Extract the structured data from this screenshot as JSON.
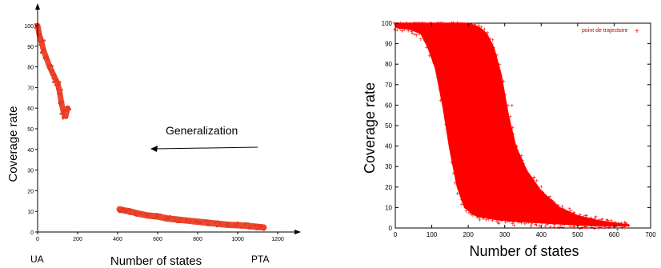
{
  "chart_data": [
    {
      "type": "scatter",
      "title": "",
      "xlabel": "Number of states",
      "ylabel": "Coverage rate",
      "xlim": [
        0,
        1200
      ],
      "ylim": [
        0,
        100
      ],
      "xticks": [
        0,
        200,
        400,
        600,
        800,
        1000,
        1200
      ],
      "yticks": [
        0,
        10,
        20,
        30,
        40,
        50,
        60,
        70,
        80,
        90,
        100
      ],
      "marker_color": "#e8341c",
      "grid": false,
      "annotations": {
        "arrow_label": "Generalization",
        "left_end_label": "UA",
        "right_end_label": "PTA"
      },
      "clusters": [
        {
          "name": "",
          "points": [
            [
              0,
              100
            ],
            [
              10,
              95
            ],
            [
              20,
              92
            ],
            [
              30,
              88
            ],
            [
              45,
              84
            ],
            [
              60,
              80
            ],
            [
              75,
              77
            ],
            [
              90,
              74
            ],
            [
              100,
              72
            ],
            [
              110,
              68
            ],
            [
              120,
              62
            ],
            [
              130,
              58
            ],
            [
              140,
              56
            ],
            [
              150,
              60
            ]
          ]
        },
        {
          "name": "",
          "points": [
            [
              410,
              11
            ],
            [
              430,
              10.5
            ],
            [
              460,
              10
            ],
            [
              500,
              9
            ],
            [
              550,
              8
            ],
            [
              600,
              7.5
            ],
            [
              650,
              6.5
            ],
            [
              700,
              6
            ],
            [
              750,
              5.5
            ],
            [
              800,
              5
            ],
            [
              850,
              4.5
            ],
            [
              900,
              4
            ],
            [
              950,
              3.5
            ],
            [
              1000,
              3.3
            ],
            [
              1050,
              3
            ],
            [
              1100,
              2.5
            ],
            [
              1130,
              2.2
            ]
          ]
        }
      ]
    },
    {
      "type": "scatter",
      "title": "",
      "xlabel": "Number of states",
      "ylabel": "Coverage rate",
      "xlim": [
        0,
        700
      ],
      "ylim": [
        0,
        100
      ],
      "xticks": [
        0,
        100,
        200,
        300,
        400,
        500,
        600,
        700
      ],
      "yticks": [
        0,
        10,
        20,
        30,
        40,
        50,
        60,
        70,
        80,
        90,
        100
      ],
      "marker_color": "#ff0000",
      "grid": false,
      "legend": {
        "label": "point de trajectoire",
        "position": "top-right"
      },
      "band": {
        "upper_edge": [
          [
            0,
            100
          ],
          [
            160,
            100
          ],
          [
            200,
            100
          ],
          [
            230,
            98
          ],
          [
            250,
            95
          ],
          [
            270,
            88
          ],
          [
            290,
            75
          ],
          [
            310,
            55
          ],
          [
            330,
            40
          ],
          [
            360,
            28
          ],
          [
            400,
            18
          ],
          [
            450,
            10
          ],
          [
            500,
            6
          ],
          [
            560,
            3.5
          ],
          [
            620,
            2
          ],
          [
            640,
            1.5
          ]
        ],
        "lower_edge": [
          [
            0,
            98
          ],
          [
            40,
            97
          ],
          [
            70,
            95
          ],
          [
            90,
            88
          ],
          [
            110,
            78
          ],
          [
            130,
            60
          ],
          [
            150,
            38
          ],
          [
            170,
            20
          ],
          [
            190,
            10
          ],
          [
            220,
            6
          ],
          [
            280,
            4
          ],
          [
            350,
            3
          ],
          [
            450,
            2
          ],
          [
            550,
            1
          ],
          [
            640,
            1
          ]
        ]
      },
      "outliers": [
        [
          265,
          90
        ],
        [
          285,
          80
        ],
        [
          320,
          60
        ],
        [
          300,
          48
        ],
        [
          350,
          30
        ],
        [
          380,
          25
        ],
        [
          420,
          15
        ]
      ]
    }
  ]
}
